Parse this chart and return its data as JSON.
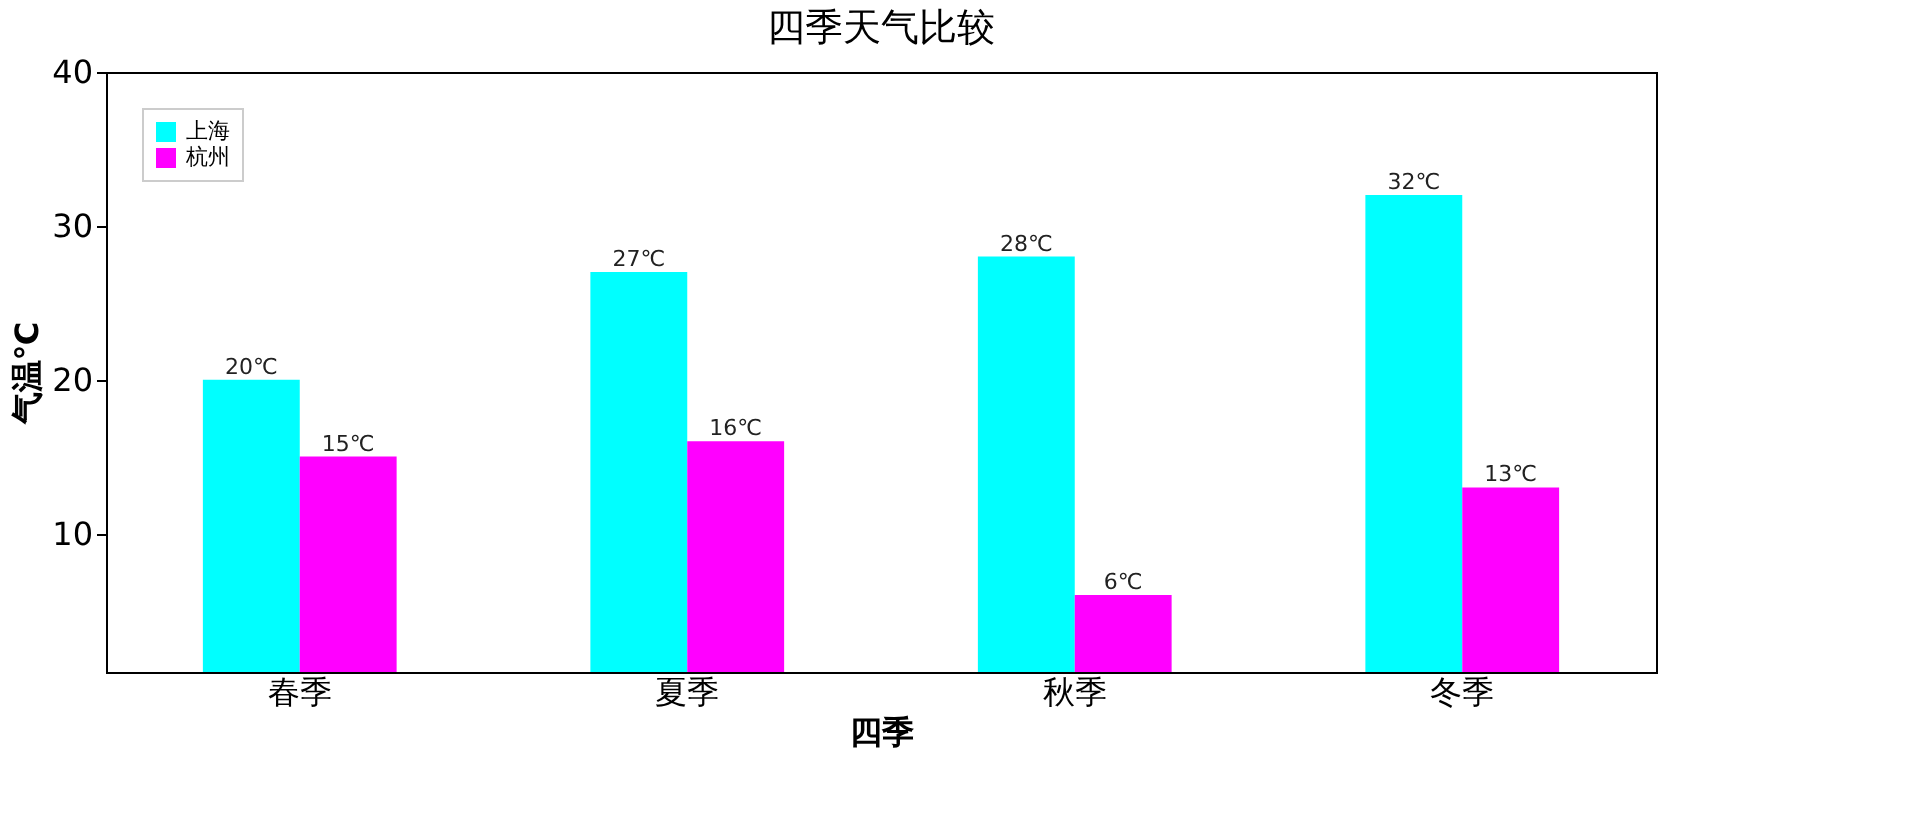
{
  "chart_data": {
    "type": "bar",
    "title": "四季天气比较",
    "xlabel": "四季",
    "ylabel": "气温℃",
    "categories": [
      "春季",
      "夏季",
      "秋季",
      "冬季"
    ],
    "series": [
      {
        "name": "上海",
        "color": "#00ffff",
        "values": [
          20,
          27,
          28,
          32
        ],
        "value_labels": [
          "20℃",
          "27℃",
          "28℃",
          "32℃"
        ]
      },
      {
        "name": "杭州",
        "color": "#ff00ff",
        "values": [
          15,
          16,
          6,
          13
        ],
        "value_labels": [
          "15℃",
          "16℃",
          "6℃",
          "13℃"
        ]
      }
    ],
    "ylim": [
      1,
      40
    ],
    "yticks": [
      10,
      20,
      30,
      40
    ],
    "legend": "top left",
    "grid": false
  }
}
